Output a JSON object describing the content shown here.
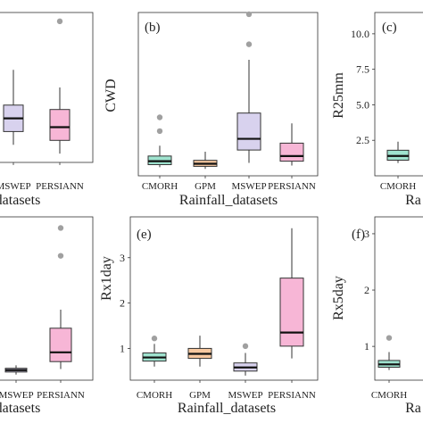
{
  "chart_data": [
    {
      "panel": "a",
      "type": "box",
      "title": "",
      "ylabel": "",
      "xlabel": "datasets",
      "categories": [
        "MSWEP",
        "PERSIANN"
      ],
      "ylim": [
        3,
        20
      ],
      "yticks": [],
      "series": [
        {
          "category": "MSWEP",
          "color": "#d8d2ee",
          "min": 5,
          "q1": 6.5,
          "median": 8,
          "q3": 9.5,
          "max": 13.5,
          "outliers": []
        },
        {
          "category": "PERSIANN",
          "color": "#f7b6d6",
          "min": 4,
          "q1": 5.5,
          "median": 7,
          "q3": 9,
          "max": 11.5,
          "outliers": [
            19
          ]
        }
      ]
    },
    {
      "panel": "b",
      "type": "box",
      "title": "(b)",
      "ylabel": "CWD",
      "xlabel": "Rainfall_datasets",
      "categories": [
        "CMORH",
        "GPM",
        "MSWEP",
        "PERSIANN"
      ],
      "ylim": [
        0,
        19
      ],
      "yticks": [],
      "series": [
        {
          "category": "CMORH",
          "color": "#9fe3cf",
          "min": 1,
          "q1": 1.3,
          "median": 1.7,
          "q3": 2.3,
          "max": 3.5,
          "outliers": [
            5.2,
            6.8
          ]
        },
        {
          "category": "GPM",
          "color": "#f7c8a0",
          "min": 0.8,
          "q1": 1.1,
          "median": 1.4,
          "q3": 1.8,
          "max": 2.8,
          "outliers": []
        },
        {
          "category": "MSWEP",
          "color": "#d8d2ee",
          "min": 1.5,
          "q1": 3,
          "median": 4.3,
          "q3": 7.3,
          "max": 13.5,
          "outliers": [
            15.3,
            18.8
          ]
        },
        {
          "category": "PERSIANN",
          "color": "#f7b6d6",
          "min": 1.2,
          "q1": 1.7,
          "median": 2.3,
          "q3": 3.8,
          "max": 6.1,
          "outliers": []
        }
      ]
    },
    {
      "panel": "c",
      "type": "box",
      "title": "(c)",
      "ylabel": "R25mm",
      "xlabel": "Ra",
      "categories": [
        "CMORH"
      ],
      "ylim": [
        0,
        11.5
      ],
      "yticks": [
        "2.5",
        "5.0",
        "7.5",
        "10.0"
      ],
      "series": [
        {
          "category": "CMORH",
          "color": "#9fe3cf",
          "min": 0.9,
          "q1": 1.1,
          "median": 1.4,
          "q3": 1.8,
          "max": 2.4,
          "outliers": []
        }
      ]
    },
    {
      "panel": "d",
      "type": "box",
      "title": "",
      "ylabel": "",
      "xlabel": "datasets",
      "categories": [
        "MSWEP",
        "PERSIANN"
      ],
      "ylim": [
        0,
        4.4
      ],
      "yticks": [],
      "series": [
        {
          "category": "MSWEP",
          "color": "#d8d2ee",
          "min": 0.15,
          "q1": 0.22,
          "median": 0.27,
          "q3": 0.32,
          "max": 0.4,
          "outliers": []
        },
        {
          "category": "PERSIANN",
          "color": "#f7b6d6",
          "min": 0.3,
          "q1": 0.5,
          "median": 0.75,
          "q3": 1.4,
          "max": 1.9,
          "outliers": [
            3.35,
            4.1
          ]
        }
      ]
    },
    {
      "panel": "e",
      "type": "box",
      "title": "(e)",
      "ylabel": "Rx1day",
      "xlabel": "Rainfall_datasets",
      "categories": [
        "CMORH",
        "GPM",
        "MSWEP",
        "PERSIANN"
      ],
      "ylim": [
        0.3,
        3.9
      ],
      "yticks": [
        "1",
        "2",
        "3"
      ],
      "series": [
        {
          "category": "CMORH",
          "color": "#9fe3cf",
          "min": 0.6,
          "q1": 0.72,
          "median": 0.8,
          "q3": 0.9,
          "max": 1.1,
          "outliers": [
            1.22
          ]
        },
        {
          "category": "GPM",
          "color": "#f7c8a0",
          "min": 0.6,
          "q1": 0.78,
          "median": 0.88,
          "q3": 1.0,
          "max": 1.28,
          "outliers": []
        },
        {
          "category": "MSWEP",
          "color": "#d8d2ee",
          "min": 0.4,
          "q1": 0.5,
          "median": 0.58,
          "q3": 0.68,
          "max": 0.9,
          "outliers": [
            1.05
          ]
        },
        {
          "category": "PERSIANN",
          "color": "#f7b6d6",
          "min": 0.78,
          "q1": 1.05,
          "median": 1.35,
          "q3": 2.55,
          "max": 3.65,
          "outliers": []
        }
      ]
    },
    {
      "panel": "f",
      "type": "box",
      "title": "(f)",
      "ylabel": "Rx5day",
      "xlabel": "Ra",
      "categories": [
        "CMORH"
      ],
      "ylim": [
        0.4,
        3.3
      ],
      "yticks": [
        "1",
        "2",
        "3"
      ],
      "series": [
        {
          "category": "CMORH",
          "color": "#9fe3cf",
          "min": 0.58,
          "q1": 0.63,
          "median": 0.68,
          "q3": 0.75,
          "max": 0.9,
          "outliers": [
            1.15
          ]
        }
      ]
    }
  ]
}
